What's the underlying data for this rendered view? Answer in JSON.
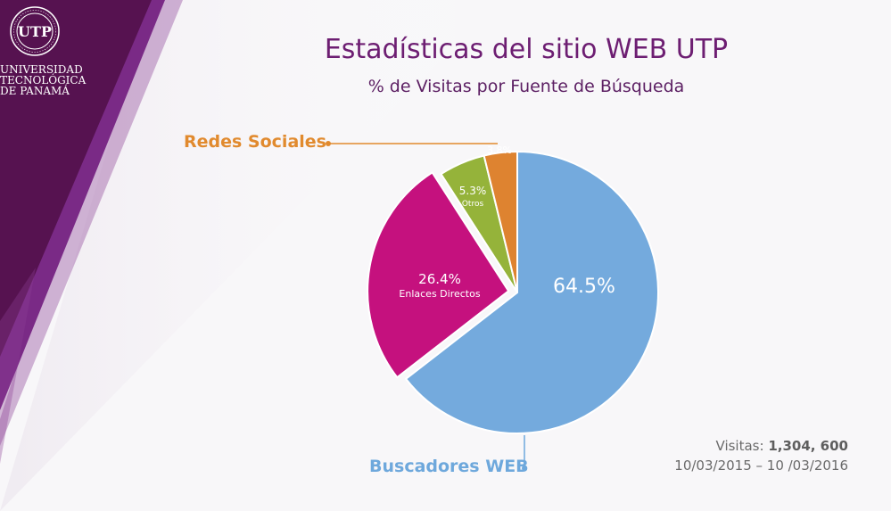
{
  "brand": {
    "logo_text": "UNIVERSIDAD\nTECNOLÓGICA\nDE PANAMÁ",
    "logo_monogram": "UTP",
    "primary_color": "#5a1451",
    "accent_color": "#7a2a86"
  },
  "header": {
    "title": "Estadísticas del sitio WEB UTP",
    "subtitle": "% de Visitas por Fuente de Búsqueda"
  },
  "chart_data": {
    "type": "pie",
    "start_angle_deg": 0,
    "direction": "clockwise",
    "slices": [
      {
        "label": "Buscadores WEB",
        "value": 64.5,
        "value_label": "64.5%",
        "inner_label": "",
        "color": "#74aadd",
        "label_color": "#ffffff"
      },
      {
        "label": "Enlaces Directos",
        "value": 26.4,
        "value_label": "26.4%",
        "inner_label": "Enlaces Directos",
        "color": "#c5117e",
        "label_color": "#ffffff"
      },
      {
        "label": "Otros",
        "value": 5.3,
        "value_label": "5.3%",
        "inner_label": "Otros",
        "color": "#95b33a",
        "label_color": "#ffffff"
      },
      {
        "label": "Redes Sociales",
        "value": 3.8,
        "value_label": "3.8%",
        "inner_label": "",
        "color": "#de8330",
        "label_color": "#ffffff"
      }
    ],
    "callouts": [
      {
        "label": "Redes Sociales",
        "color": "#e18a2e"
      },
      {
        "label": "Buscadores WEB",
        "color": "#6ea8dc"
      }
    ]
  },
  "footer": {
    "visits_label": "Visitas: ",
    "visits_value": "1,304, 600",
    "date_range": "10/03/2015 – 10 /03/2016"
  }
}
